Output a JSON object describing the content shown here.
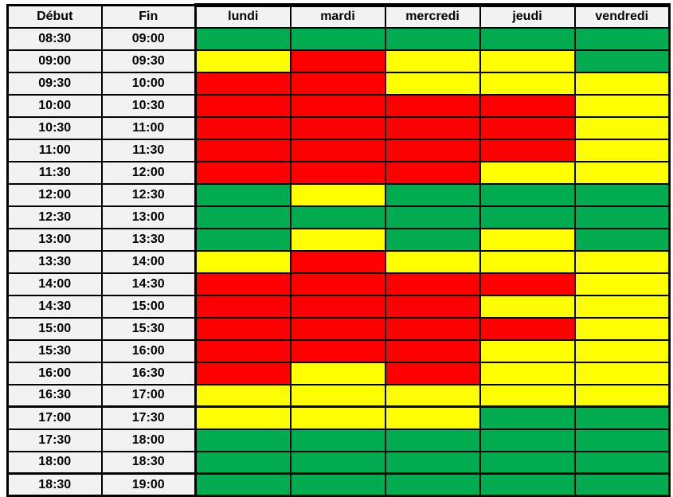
{
  "colors": {
    "green": "#00AC4F",
    "yellow": "#FFFF00",
    "red": "#FF0000",
    "label_bg": "#F2F2F2",
    "grid_border": "#000000",
    "text": "#000000",
    "page_bg": "#FFFFFF"
  },
  "table": {
    "time_headers": [
      "Début",
      "Fin"
    ],
    "day_headers": [
      "lundi",
      "mardi",
      "mercredi",
      "jeudi",
      "vendredi"
    ],
    "rows": [
      {
        "start": "08:30",
        "end": "09:00",
        "cells": [
          "green",
          "green",
          "green",
          "green",
          "green"
        ]
      },
      {
        "start": "09:00",
        "end": "09:30",
        "cells": [
          "yellow",
          "red",
          "yellow",
          "yellow",
          "green"
        ]
      },
      {
        "start": "09:30",
        "end": "10:00",
        "cells": [
          "red",
          "red",
          "yellow",
          "yellow",
          "yellow"
        ]
      },
      {
        "start": "10:00",
        "end": "10:30",
        "cells": [
          "red",
          "red",
          "red",
          "red",
          "yellow"
        ]
      },
      {
        "start": "10:30",
        "end": "11:00",
        "cells": [
          "red",
          "red",
          "red",
          "red",
          "yellow"
        ]
      },
      {
        "start": "11:00",
        "end": "11:30",
        "cells": [
          "red",
          "red",
          "red",
          "red",
          "yellow"
        ]
      },
      {
        "start": "11:30",
        "end": "12:00",
        "cells": [
          "red",
          "red",
          "red",
          "yellow",
          "yellow"
        ]
      },
      {
        "start": "12:00",
        "end": "12:30",
        "cells": [
          "green",
          "yellow",
          "green",
          "green",
          "green"
        ]
      },
      {
        "start": "12:30",
        "end": "13:00",
        "cells": [
          "green",
          "green",
          "green",
          "green",
          "green"
        ]
      },
      {
        "start": "13:00",
        "end": "13:30",
        "cells": [
          "green",
          "yellow",
          "green",
          "yellow",
          "green"
        ]
      },
      {
        "start": "13:30",
        "end": "14:00",
        "cells": [
          "yellow",
          "red",
          "yellow",
          "yellow",
          "yellow"
        ]
      },
      {
        "start": "14:00",
        "end": "14:30",
        "cells": [
          "red",
          "red",
          "red",
          "red",
          "yellow"
        ]
      },
      {
        "start": "14:30",
        "end": "15:00",
        "cells": [
          "red",
          "red",
          "red",
          "yellow",
          "yellow"
        ]
      },
      {
        "start": "15:00",
        "end": "15:30",
        "cells": [
          "red",
          "red",
          "red",
          "red",
          "yellow"
        ]
      },
      {
        "start": "15:30",
        "end": "16:00",
        "cells": [
          "red",
          "red",
          "red",
          "yellow",
          "yellow"
        ]
      },
      {
        "start": "16:00",
        "end": "16:30",
        "cells": [
          "red",
          "yellow",
          "red",
          "yellow",
          "yellow"
        ]
      },
      {
        "start": "16:30",
        "end": "17:00",
        "cells": [
          "yellow",
          "yellow",
          "yellow",
          "yellow",
          "yellow"
        ]
      },
      {
        "start": "17:00",
        "end": "17:30",
        "cells": [
          "yellow",
          "yellow",
          "yellow",
          "green",
          "green"
        ]
      },
      {
        "start": "17:30",
        "end": "18:00",
        "cells": [
          "green",
          "green",
          "green",
          "green",
          "green"
        ]
      },
      {
        "start": "18:00",
        "end": "18:30",
        "cells": [
          "green",
          "green",
          "green",
          "green",
          "green"
        ]
      },
      {
        "start": "18:30",
        "end": "19:00",
        "cells": [
          "green",
          "green",
          "green",
          "green",
          "green"
        ]
      }
    ]
  }
}
